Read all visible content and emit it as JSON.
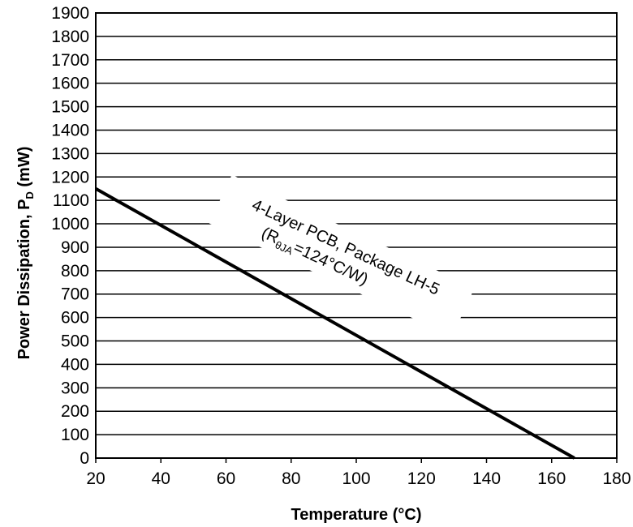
{
  "chart_data": {
    "type": "line",
    "title": "",
    "xlabel": "Temperature (°C)",
    "ylabel": {
      "prefix": "Power Dissipation, P",
      "subscript": "D",
      "suffix": " (mW)"
    },
    "xlim": [
      20,
      180
    ],
    "ylim": [
      0,
      1900
    ],
    "x_ticks": [
      20,
      40,
      60,
      80,
      100,
      120,
      140,
      160,
      180
    ],
    "y_ticks": [
      0,
      100,
      200,
      300,
      400,
      500,
      600,
      700,
      800,
      900,
      1000,
      1100,
      1200,
      1300,
      1400,
      1500,
      1600,
      1700,
      1800,
      1900
    ],
    "grid": "horizontal",
    "series": [
      {
        "x": [
          20,
          167
        ],
        "y": [
          1150,
          0
        ]
      }
    ],
    "annotations": [
      {
        "line1": "4-Layer PCB, Package LH-5",
        "line2_prefix": "(R",
        "line2_subscript": "θJA",
        "line2_suffix": "=124°C/W)"
      }
    ]
  }
}
